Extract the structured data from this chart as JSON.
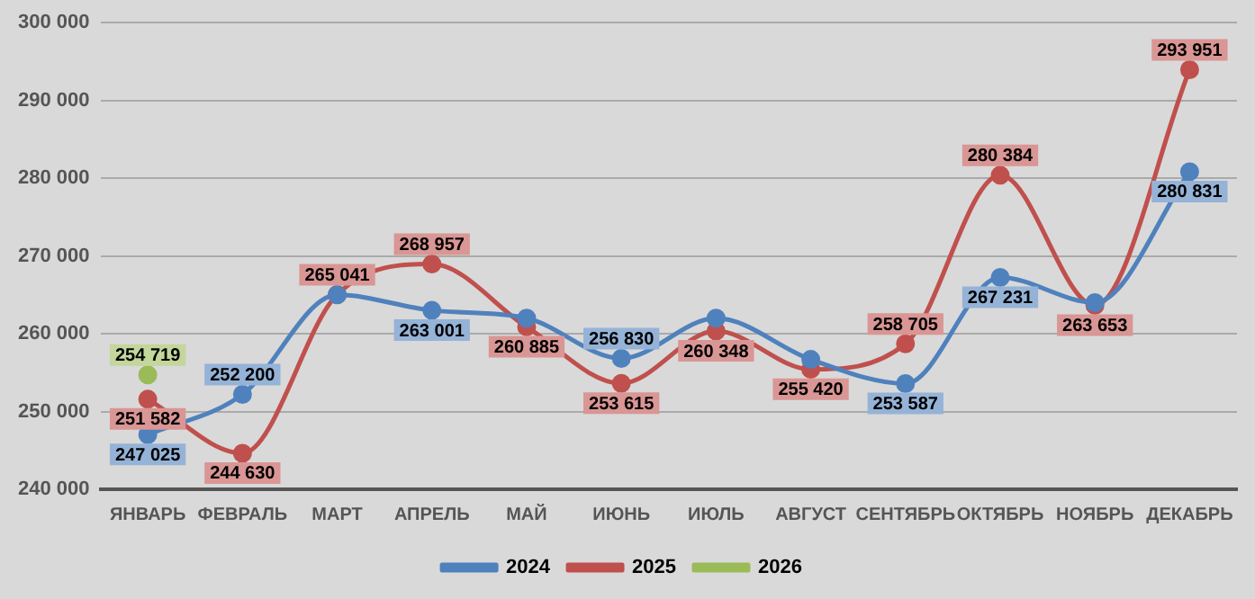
{
  "chart_data": {
    "type": "line",
    "categories": [
      "ЯНВАРЬ",
      "ФЕВРАЛЬ",
      "МАРТ",
      "АПРЕЛЬ",
      "МАЙ",
      "ИЮНЬ",
      "ИЮЛЬ",
      "АВГУСТ",
      "СЕНТЯБРЬ",
      "ОКТЯБРЬ",
      "НОЯБРЬ",
      "ДЕКАБРЬ"
    ],
    "series": [
      {
        "name": "2024",
        "color": "#4f81bd",
        "values": [
          247025,
          252200,
          265000,
          263001,
          262000,
          256830,
          262000,
          256700,
          253587,
          267231,
          264000,
          280831
        ],
        "value_labels": [
          "247 025",
          "252 200",
          null,
          "263 001",
          null,
          "256 830",
          null,
          null,
          "253 587",
          "267 231",
          null,
          "280 831"
        ]
      },
      {
        "name": "2025",
        "color": "#c0504d",
        "values": [
          251582,
          244630,
          265041,
          268957,
          260885,
          253615,
          260348,
          255420,
          258705,
          280384,
          263653,
          293951
        ],
        "value_labels": [
          "251 582",
          "244 630",
          "265 041",
          "268 957",
          "260 885",
          "253 615",
          "260 348",
          "255 420",
          "258 705",
          "280 384",
          "263 653",
          "293 951"
        ]
      },
      {
        "name": "2026",
        "color": "#9bbb59",
        "values": [
          254719,
          null,
          null,
          null,
          null,
          null,
          null,
          null,
          null,
          null,
          null,
          null
        ],
        "value_labels": [
          "254 719",
          null,
          null,
          null,
          null,
          null,
          null,
          null,
          null,
          null,
          null,
          null
        ]
      }
    ],
    "ylim": [
      240000,
      300000
    ],
    "yticks": [
      {
        "value": 240000,
        "label": "240 000"
      },
      {
        "value": 250000,
        "label": "250 000"
      },
      {
        "value": 260000,
        "label": "260 000"
      },
      {
        "value": 270000,
        "label": "270 000"
      },
      {
        "value": 280000,
        "label": "280 000"
      },
      {
        "value": 290000,
        "label": "290 000"
      },
      {
        "value": 300000,
        "label": "300 000"
      }
    ],
    "grid": "y",
    "legend": "bottom",
    "marker": "circle",
    "line_style": "solid"
  }
}
